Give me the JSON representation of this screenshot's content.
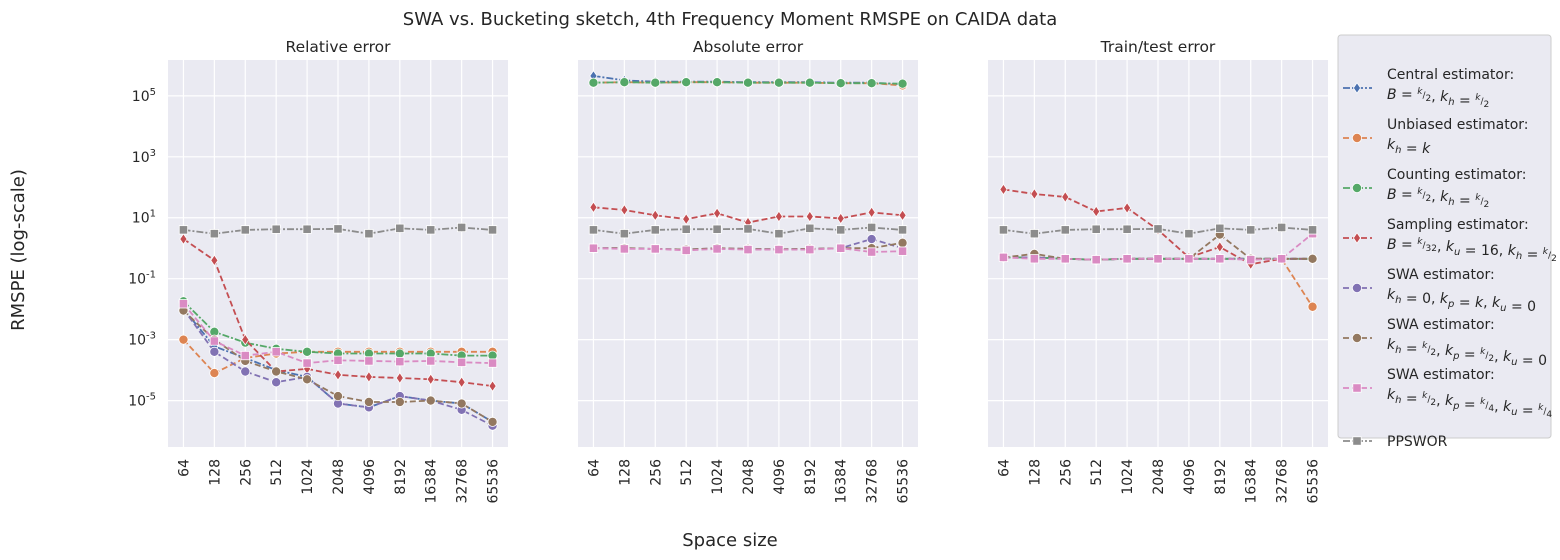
{
  "figure": {
    "suptitle": "SWA vs. Bucketing sketch, 4th Frequency Moment RMSPE on CAIDA data",
    "xlabel": "Space size",
    "ylabel": "RMSPE (log-scale)"
  },
  "legend": {
    "placement": "right",
    "entries": [
      {
        "line1": "Central estimator:",
        "line2": "B = k/2, k_h = k/2",
        "color": "#4c72b0",
        "marker": "diamond"
      },
      {
        "line1": "Unbiased estimator:",
        "line2": "k_h = k",
        "color": "#dd8452",
        "marker": "circle"
      },
      {
        "line1": "Counting estimator:",
        "line2": "B = k/2, k_h = k/2",
        "color": "#55a868",
        "marker": "circle"
      },
      {
        "line1": "Sampling estimator:",
        "line2": "B = k/32, k_u = 16, k_h = k/2",
        "color": "#c44e52",
        "marker": "diamond"
      },
      {
        "line1": "SWA estimator:",
        "line2": "k_h = 0, k_p = k, k_u = 0",
        "color": "#8172b3",
        "marker": "circle"
      },
      {
        "line1": "SWA estimator:",
        "line2": "k_h = k/2, k_p = k/2, k_u = 0",
        "color": "#937860",
        "marker": "circle"
      },
      {
        "line1": "SWA estimator:",
        "line2": "k_h = k/2, k_p = k/4, k_u = k/4",
        "color": "#da8bc3",
        "marker": "square"
      },
      {
        "line1": "PPSWOR",
        "line2": "",
        "color": "#8c8c8c",
        "marker": "square"
      }
    ]
  },
  "chart_data": [
    {
      "type": "line",
      "title": "Relative error",
      "yscale": "log",
      "ylim": [
        3e-07,
        1500000.0
      ],
      "yticks": [
        "10^5",
        "10^3",
        "10^1",
        "10^-1",
        "10^-3",
        "10^-5"
      ],
      "x": [
        "64",
        "128",
        "256",
        "512",
        "1024",
        "2048",
        "4096",
        "8192",
        "16384",
        "32768",
        "65536"
      ],
      "grid": true,
      "series": [
        {
          "name": "Central estimator",
          "values": [
            0.01,
            0.0006,
            0.00025,
            0.0001,
            6e-05,
            8e-06,
            6e-06,
            1.4e-05,
            1e-05,
            8e-06,
            2e-06
          ]
        },
        {
          "name": "Unbiased estimator",
          "values": [
            0.001,
            8e-05,
            0.00025,
            0.00035,
            0.0004,
            0.0004,
            0.0004,
            0.0004,
            0.0004,
            0.0004,
            0.0004
          ]
        },
        {
          "name": "Counting estimator",
          "values": [
            0.018,
            0.0018,
            0.0008,
            0.0005,
            0.0004,
            0.00035,
            0.00035,
            0.00035,
            0.00035,
            0.0003,
            0.0003
          ]
        },
        {
          "name": "Sampling estimator",
          "values": [
            2,
            0.4,
            0.001,
            9e-05,
            0.00011,
            7e-05,
            6e-05,
            5.5e-05,
            5e-05,
            4e-05,
            3e-05
          ]
        },
        {
          "name": "SWA estimator 1",
          "values": [
            0.01,
            0.0004,
            9e-05,
            4e-05,
            6e-05,
            8e-06,
            6e-06,
            1.4e-05,
            1e-05,
            5e-06,
            1.5e-06
          ]
        },
        {
          "name": "SWA estimator 2",
          "values": [
            0.009,
            0.001,
            0.0002,
            9e-05,
            5e-05,
            1.4e-05,
            9e-06,
            9e-06,
            1e-05,
            8e-06,
            2e-06
          ]
        },
        {
          "name": "SWA estimator 3",
          "values": [
            0.015,
            0.0009,
            0.0003,
            0.0004,
            0.00017,
            0.00021,
            0.0002,
            0.00019,
            0.0002,
            0.00018,
            0.00017
          ]
        },
        {
          "name": "PPSWOR",
          "values": [
            4,
            3,
            4,
            4.2,
            4.2,
            4.3,
            3,
            4.5,
            4,
            4.8,
            4
          ]
        }
      ]
    },
    {
      "type": "line",
      "title": "Absolute error",
      "yscale": "log",
      "ylim": [
        3e-07,
        1500000.0
      ],
      "x": [
        "64",
        "128",
        "256",
        "512",
        "1024",
        "2048",
        "4096",
        "8192",
        "16384",
        "32768",
        "65536"
      ],
      "grid": true,
      "series": [
        {
          "name": "Central estimator",
          "values": [
            450000,
            320000,
            290000,
            290000,
            290000,
            280000,
            280000,
            280000,
            270000,
            270000,
            240000
          ]
        },
        {
          "name": "Unbiased estimator",
          "values": [
            270000,
            280000,
            270000,
            280000,
            280000,
            270000,
            270000,
            270000,
            260000,
            260000,
            220000
          ]
        },
        {
          "name": "Counting estimator",
          "values": [
            270000,
            280000,
            270000,
            280000,
            280000,
            270000,
            270000,
            270000,
            260000,
            260000,
            250000
          ]
        },
        {
          "name": "Sampling estimator",
          "values": [
            22,
            18,
            12,
            9,
            14,
            7,
            11,
            11,
            9.5,
            15,
            12
          ]
        },
        {
          "name": "SWA estimator 1",
          "values": [
            1,
            1,
            0.95,
            0.9,
            1,
            0.95,
            0.92,
            0.95,
            1,
            2,
            1
          ]
        },
        {
          "name": "SWA estimator 2",
          "values": [
            1,
            1,
            0.95,
            0.9,
            1,
            0.95,
            0.92,
            0.95,
            1,
            1,
            1.5
          ]
        },
        {
          "name": "SWA estimator 3",
          "values": [
            1,
            0.95,
            0.95,
            0.85,
            0.95,
            0.9,
            0.9,
            0.9,
            1,
            0.75,
            0.8
          ]
        },
        {
          "name": "PPSWOR",
          "values": [
            4,
            3,
            4,
            4.2,
            4.2,
            4.3,
            3,
            4.5,
            4,
            4.8,
            4
          ]
        }
      ]
    },
    {
      "type": "line",
      "title": "Train/test error",
      "yscale": "log",
      "ylim": [
        3e-07,
        1500000.0
      ],
      "x": [
        "64",
        "128",
        "256",
        "512",
        "1024",
        "2048",
        "4096",
        "8192",
        "16384",
        "32768",
        "65536"
      ],
      "grid": true,
      "series": [
        {
          "name": "Central estimator",
          "values": [
            0.5,
            0.5,
            0.45,
            0.42,
            0.45,
            0.45,
            0.45,
            0.45,
            0.45,
            0.45,
            0.45
          ]
        },
        {
          "name": "Unbiased estimator",
          "values": [
            0.5,
            0.5,
            0.45,
            0.42,
            0.45,
            0.45,
            0.45,
            0.45,
            0.45,
            0.45,
            0.012
          ]
        },
        {
          "name": "Counting estimator",
          "values": [
            0.5,
            0.5,
            0.45,
            0.42,
            0.45,
            0.45,
            0.45,
            0.45,
            0.45,
            0.45,
            0.45
          ]
        },
        {
          "name": "Sampling estimator",
          "values": [
            85,
            60,
            48,
            16,
            21,
            4,
            0.5,
            1.1,
            0.3,
            0.45,
            0.45
          ]
        },
        {
          "name": "SWA estimator 1",
          "values": [
            0.5,
            0.5,
            0.45,
            0.42,
            0.45,
            0.45,
            0.45,
            0.45,
            0.45,
            0.45,
            0.45
          ]
        },
        {
          "name": "SWA estimator 2",
          "values": [
            0.5,
            0.65,
            0.45,
            0.42,
            0.45,
            0.45,
            0.45,
            2.8,
            0.45,
            0.45,
            0.45
          ]
        },
        {
          "name": "SWA estimator 3",
          "values": [
            0.5,
            0.45,
            0.45,
            0.42,
            0.45,
            0.45,
            0.45,
            0.45,
            0.42,
            0.45,
            3
          ]
        },
        {
          "name": "PPSWOR",
          "values": [
            4,
            3,
            4,
            4.2,
            4.2,
            4.3,
            3,
            4.5,
            4,
            4.8,
            4
          ]
        }
      ]
    }
  ]
}
